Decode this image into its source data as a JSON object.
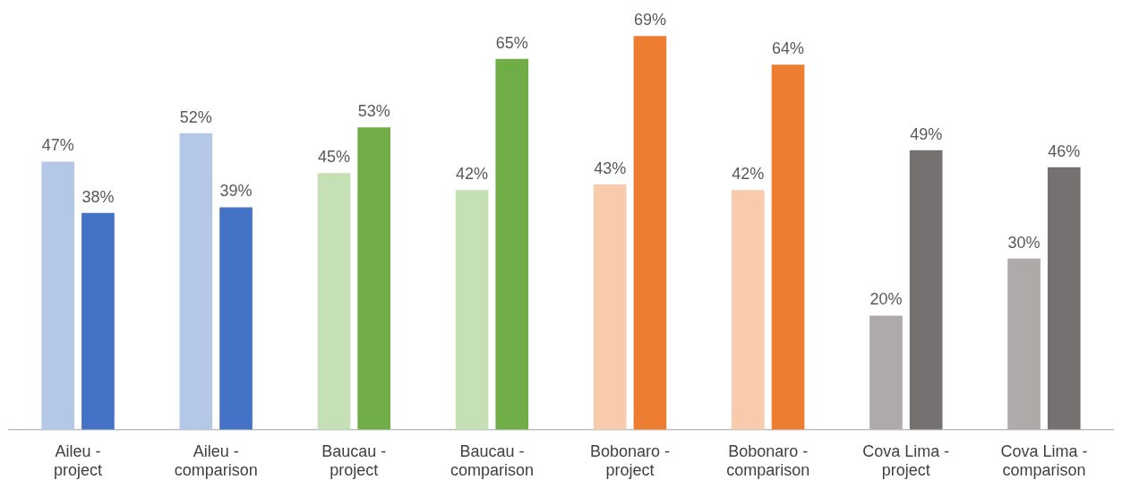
{
  "chart_data": {
    "type": "bar",
    "categories": [
      "Aileu - project",
      "Aileu - comparison",
      "Baucau - project",
      "Baucau - comparison",
      "Bobonaro - project",
      "Bobonaro - comparison",
      "Cova Lima - project",
      "Cova Lima - comparison"
    ],
    "series": [
      {
        "colors": [
          "#b4c7e7",
          "#b4c7e7",
          "#c5e0b4",
          "#c5e0b4",
          "#f8cbad",
          "#f8cbad",
          "#aeaaaa",
          "#aeaaaa"
        ],
        "values": [
          47,
          52,
          45,
          42,
          43,
          42,
          20,
          30
        ],
        "value_labels": [
          "47%",
          "52%",
          "45%",
          "42%",
          "43%",
          "42%",
          "20%",
          "30%"
        ]
      },
      {
        "colors": [
          "#4472c4",
          "#4472c4",
          "#70ad47",
          "#70ad47",
          "#ed7d31",
          "#ed7d31",
          "#767171",
          "#767171"
        ],
        "values": [
          38,
          39,
          53,
          65,
          69,
          64,
          49,
          46
        ],
        "value_labels": [
          "38%",
          "39%",
          "53%",
          "65%",
          "69%",
          "64%",
          "49%",
          "46%"
        ]
      }
    ],
    "grid": false,
    "legend": false
  }
}
